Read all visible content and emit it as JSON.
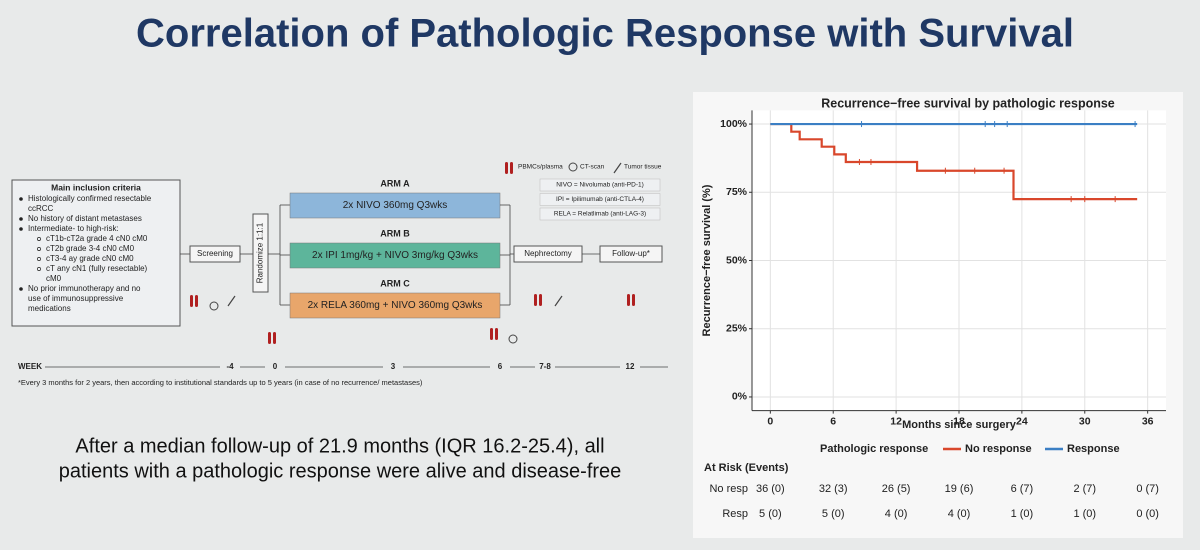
{
  "title": "Correlation of Pathologic Response with Survival",
  "diagram": {
    "inclusion": {
      "heading": "Main inclusion criteria",
      "items": [
        {
          "text": [
            "Histologically confirmed resectable",
            "ccRCC"
          ]
        },
        {
          "text": [
            "No history of distant metastases"
          ]
        },
        {
          "text": [
            "Intermediate- to high-risk:"
          ],
          "sub": [
            [
              "cT1b-cT2a grade 4 cN0 cM0"
            ],
            [
              "cT2b grade 3-4 cN0 cM0"
            ],
            [
              "cT3-4 ay grade cN0 cM0"
            ],
            [
              "cT any cN1 (fully resectable)",
              "cM0"
            ]
          ]
        },
        {
          "text": [
            "No prior immunotherapy and no",
            "use of immunosuppressive",
            "medications"
          ]
        }
      ]
    },
    "screening": "Screening",
    "randomize": "Randomize 1:1:1",
    "arms": [
      {
        "label": "ARM A",
        "text": "2x NIVO 360mg Q3wks"
      },
      {
        "label": "ARM B",
        "text": "2x IPI 1mg/kg + NIVO 3mg/kg Q3wks"
      },
      {
        "label": "ARM C",
        "text": "2x RELA 360mg + NIVO 360mg Q3wks"
      }
    ],
    "nephrectomy": "Nephrectomy",
    "followup": "Follow-up*",
    "legend": [
      "PBMCs/plasma",
      "CT-scan",
      "Tumor tissue"
    ],
    "abbreviations": [
      "NIVO = Nivolumab (anti-PD-1)",
      "IPI = Ipilimumab (anti-CTLA-4)",
      "RELA = Relatlimab (anti-LAG-3)"
    ],
    "timeline": {
      "label": "WEEK",
      "weeks": [
        "-4",
        "0",
        "3",
        "6",
        "7-8",
        "12"
      ]
    },
    "footnote": "*Every 3 months for 2 years, then according to institutional standards up to 5 years (in case of no recurrence/ metastases)"
  },
  "summary": [
    "After a median follow-up of 21.9 months (IQR 16.2-25.4), all",
    "patients with a pathologic response were alive and disease-free"
  ],
  "chart_data": {
    "type": "km",
    "title": "Recurrence−free survival by pathologic response",
    "xlabel": "Months since surgery",
    "ylabel": "Recurrence−free survival (%)",
    "xlim": [
      -1.75,
      37.75
    ],
    "xticks": [
      0,
      6,
      12,
      18,
      24,
      30,
      36
    ],
    "ylim": [
      -5,
      105
    ],
    "yticks": [
      {
        "value": 0,
        "label": "0%"
      },
      {
        "value": 25,
        "label": "25%"
      },
      {
        "value": 50,
        "label": "50%"
      },
      {
        "value": 75,
        "label": "75%"
      },
      {
        "value": 100,
        "label": "100%"
      }
    ],
    "grid": true,
    "legend_title": "Pathologic response",
    "series": [
      {
        "name": "No response",
        "color": "#d9472b",
        "x": [
          0,
          2,
          2.8,
          4.9,
          6.1,
          7.2,
          14,
          23.2,
          35
        ],
        "values": [
          100,
          97.2,
          94.4,
          91.7,
          88.9,
          86.1,
          82.9,
          72.5,
          72.5
        ],
        "censored": [
          8.5,
          9.6,
          16.7,
          19.5,
          22.3,
          28.7,
          30,
          32.9
        ]
      },
      {
        "name": "Response",
        "color": "#3b7fc4",
        "x": [
          0,
          35
        ],
        "values": [
          100,
          100
        ],
        "censored": [
          8.7,
          20.5,
          21.4,
          22.6,
          34.8
        ]
      }
    ],
    "at_risk": {
      "title": "At Risk (Events)",
      "rows": [
        {
          "label": "No resp",
          "values": [
            "36 (0)",
            "32 (3)",
            "26 (5)",
            "19 (6)",
            "6 (7)",
            "2 (7)",
            "0 (7)"
          ]
        },
        {
          "label": "Resp",
          "values": [
            "5 (0)",
            "5 (0)",
            "4 (0)",
            "4 (0)",
            "1 (0)",
            "1 (0)",
            "0 (0)"
          ]
        }
      ]
    }
  }
}
